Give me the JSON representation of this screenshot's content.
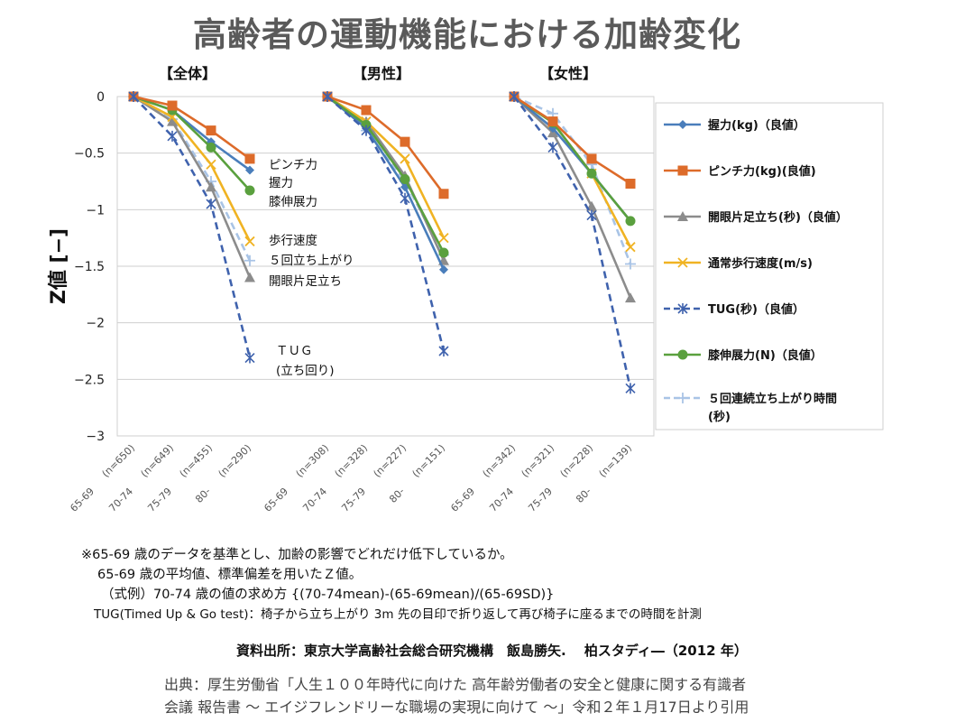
{
  "title": "高齢者の運動機能における加齢変化",
  "chart_data": {
    "type": "line",
    "ylabel": "Z値 [−]",
    "ylim": [
      -3,
      0
    ],
    "yticks": [
      0,
      -0.5,
      -1,
      -1.5,
      -2,
      -2.5,
      -3
    ],
    "ytick_labels": [
      "0",
      "−0.5",
      "−1",
      "−1.5",
      "−2",
      "−2.5",
      "−3"
    ],
    "grid": true,
    "legend_position": "right",
    "age_groups": [
      "65-69",
      "70-74",
      "75-79",
      "80-"
    ],
    "series_styles": [
      {
        "key": "grip",
        "name": "握力(kg)（良値）",
        "color": "#4a7ebb",
        "marker": "diamond",
        "dashed": false
      },
      {
        "key": "pinch",
        "name": "ピンチ力(kg)(良値)",
        "color": "#dd6b2a",
        "marker": "square",
        "dashed": false
      },
      {
        "key": "oneleg",
        "name": "開眼片足立ち(秒)（良値）",
        "color": "#8c8c8c",
        "marker": "triangle",
        "dashed": false
      },
      {
        "key": "walk",
        "name": "通常歩行速度(m/s)",
        "color": "#f0b323",
        "marker": "x",
        "dashed": false
      },
      {
        "key": "tug",
        "name": "TUG(秒)（良値）",
        "color": "#3f62ad",
        "marker": "asterisk",
        "dashed": true
      },
      {
        "key": "knee",
        "name": "膝伸展力(N)（良値）",
        "color": "#5aa03e",
        "marker": "circle",
        "dashed": false
      },
      {
        "key": "stand",
        "name": "５回連続立ち上がり時間\n(秒)",
        "color": "#a9c4e6",
        "marker": "plus",
        "dashed": true
      }
    ],
    "panels": [
      {
        "title": "【全体】",
        "n_labels": [
          "(n=650)",
          "(n=649)",
          "(n=455)",
          "(n=290)"
        ],
        "values": {
          "grip": [
            0,
            -0.12,
            -0.4,
            -0.65
          ],
          "pinch": [
            0,
            -0.08,
            -0.3,
            -0.55
          ],
          "oneleg": [
            0,
            -0.22,
            -0.8,
            -1.6
          ],
          "walk": [
            0,
            -0.18,
            -0.6,
            -1.28
          ],
          "tug": [
            0,
            -0.35,
            -0.95,
            -2.31
          ],
          "knee": [
            0,
            -0.12,
            -0.45,
            -0.83
          ],
          "stand": [
            0,
            -0.2,
            -0.75,
            -1.45
          ]
        },
        "annotations": [
          "ピンチ力",
          "握力",
          "膝伸展力",
          "歩行速度",
          "５回立ち上がり",
          "開眼片足立ち",
          "ＴＵＧ",
          "(立ち回り)"
        ]
      },
      {
        "title": "【男性】",
        "n_labels": [
          "(n=308)",
          "(n=328)",
          "(n=227)",
          "(n=151)"
        ],
        "values": {
          "grip": [
            0,
            -0.28,
            -0.8,
            -1.53
          ],
          "pinch": [
            0,
            -0.12,
            -0.4,
            -0.86
          ],
          "oneleg": [
            0,
            -0.22,
            -0.7,
            -1.45
          ],
          "walk": [
            0,
            -0.22,
            -0.55,
            -1.25
          ],
          "tug": [
            0,
            -0.3,
            -0.9,
            -2.25
          ],
          "knee": [
            0,
            -0.25,
            -0.73,
            -1.38
          ],
          "stand": [
            0,
            -0.3,
            -0.75,
            -1.4
          ]
        }
      },
      {
        "title": "【女性】",
        "n_labels": [
          "(n=342)",
          "(n=321)",
          "(n=228)",
          "(n=139)"
        ],
        "values": {
          "grip": [
            0,
            -0.28,
            -0.68,
            -1.1
          ],
          "pinch": [
            0,
            -0.22,
            -0.55,
            -0.77
          ],
          "oneleg": [
            0,
            -0.32,
            -0.97,
            -1.78
          ],
          "walk": [
            0,
            -0.23,
            -0.68,
            -1.33
          ],
          "tug": [
            0,
            -0.45,
            -1.05,
            -2.58
          ],
          "knee": [
            0,
            -0.23,
            -0.68,
            -1.1
          ],
          "stand": [
            0,
            -0.15,
            -0.6,
            -1.48
          ]
        }
      }
    ]
  },
  "notes": [
    "※65-69 歳のデータを基準とし、加齢の影響でどれだけ低下しているか。",
    "65-69 歳の平均値、標準偏差を用いたＺ値。",
    "（式例）70-74 歳の値の求め方 {(70-74mean)-(65-69mean)/(65-69SD)}",
    "TUG(Timed Up & Go test)：椅子から立ち上がり 3m 先の目印で折り返して再び椅子に座るまでの時間を計測"
  ],
  "source": "資料出所：東京大学高齢社会総合研究機構　飯島勝矢.　 柏スタディ―（2012 年）",
  "citation": [
    "出典：厚生労働省「人生１００年時代に向けた 高年齢労働者の安全と健康に関する有識者",
    "会議 報告書 〜 エイジフレンドリーな職場の実現に向けて 〜」令和２年１月17日より引用"
  ]
}
